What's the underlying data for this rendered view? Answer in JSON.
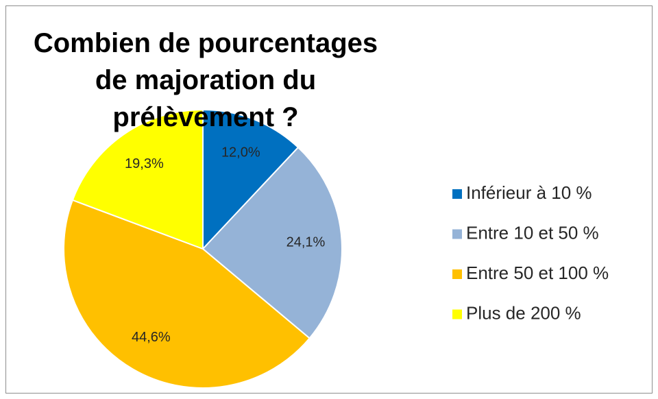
{
  "chart_data": {
    "type": "pie",
    "title": "Combien de pourcentages de majoration du prélèvement ?",
    "categories": [
      "Inférieur à 10 %",
      "Entre 10 et 50 %",
      "Entre 50 et 100 %",
      "Plus de 200 %"
    ],
    "values": [
      12.0,
      24.1,
      44.6,
      19.3
    ],
    "value_labels": [
      "12,0%",
      "24,1%",
      "44,6%",
      "19,3%"
    ],
    "colors": [
      "#0070c0",
      "#95b3d7",
      "#ffc000",
      "#ffff00"
    ],
    "legend": "right"
  }
}
